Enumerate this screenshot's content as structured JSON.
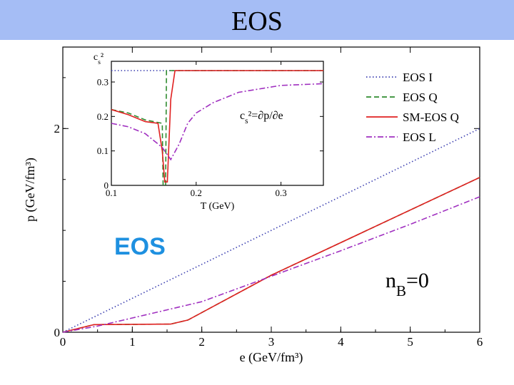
{
  "slide": {
    "title": "EOS",
    "overlay_label": "EOS",
    "title_bar_color": "#a5bdf5",
    "overlay_label_color": "#1e90e0"
  },
  "chart_data": [
    {
      "type": "line",
      "xlabel": "e (GeV/fm³)",
      "ylabel": "p (GeV/fm³)",
      "xlim": [
        0,
        6
      ],
      "ylim": [
        0,
        2.8
      ],
      "x_ticks": [
        0,
        1,
        2,
        3,
        4,
        5,
        6
      ],
      "y_ticks": [
        0,
        2
      ],
      "x_tick_labels": [
        "0",
        "1",
        "2",
        "3",
        "4",
        "5",
        "6"
      ],
      "y_tick_labels": [
        "0",
        "2"
      ],
      "grid": false,
      "legend_position": "top-right",
      "annotation": "n_B=0",
      "series": [
        {
          "name": "EOS I",
          "color": "#3b3fb0",
          "dash": "dotted",
          "points": [
            [
              0,
              0
            ],
            [
              6,
              2.0
            ]
          ]
        },
        {
          "name": "EOS Q",
          "color": "#2e8b2e",
          "dash": "dashed",
          "points": [
            [
              0,
              0
            ],
            [
              0.45,
              0.075
            ],
            [
              1.55,
              0.08
            ],
            [
              1.8,
              0.12
            ],
            [
              3,
              0.56
            ],
            [
              6,
              1.52
            ]
          ]
        },
        {
          "name": "SM-EOS Q",
          "color": "#e02020",
          "dash": "solid",
          "points": [
            [
              0,
              0
            ],
            [
              0.45,
              0.075
            ],
            [
              1.55,
              0.08
            ],
            [
              1.8,
              0.12
            ],
            [
              3,
              0.56
            ],
            [
              6,
              1.52
            ]
          ]
        },
        {
          "name": "EOS L",
          "color": "#a030c0",
          "dash": "dashdot",
          "points": [
            [
              0,
              0
            ],
            [
              0.5,
              0.06
            ],
            [
              1,
              0.14
            ],
            [
              1.5,
              0.22
            ],
            [
              2,
              0.3
            ],
            [
              3,
              0.55
            ],
            [
              4,
              0.8
            ],
            [
              5,
              1.06
            ],
            [
              6,
              1.33
            ]
          ]
        }
      ]
    },
    {
      "type": "line",
      "xlabel": "T (GeV)",
      "ylabel": "c_s²",
      "xlim": [
        0.1,
        0.35
      ],
      "ylim": [
        0,
        0.36
      ],
      "x_ticks": [
        0.1,
        0.2,
        0.3
      ],
      "y_ticks": [
        0,
        0.1,
        0.2,
        0.3
      ],
      "x_tick_labels": [
        "0.1",
        "0.2",
        "0.3"
      ],
      "y_tick_labels": [
        "0",
        "0.1",
        "0.2",
        "0.3"
      ],
      "grid": false,
      "annotation": "c_s²=∂p/∂e",
      "series": [
        {
          "name": "EOS I",
          "color": "#3b3fb0",
          "dash": "dotted",
          "points": [
            [
              0.1,
              0.333
            ],
            [
              0.35,
              0.333
            ]
          ]
        },
        {
          "name": "EOS Q",
          "color": "#2e8b2e",
          "dash": "dashed",
          "points": [
            [
              0.1,
              0.22
            ],
            [
              0.12,
              0.21
            ],
            [
              0.14,
              0.19
            ],
            [
              0.16,
              0.18
            ],
            [
              0.161,
              0.0
            ],
            [
              0.164,
              0.0
            ],
            [
              0.165,
              0.333
            ],
            [
              0.35,
              0.333
            ]
          ]
        },
        {
          "name": "SM-EOS Q",
          "color": "#e02020",
          "dash": "solid",
          "points": [
            [
              0.1,
              0.22
            ],
            [
              0.12,
              0.205
            ],
            [
              0.14,
              0.185
            ],
            [
              0.155,
              0.18
            ],
            [
              0.16,
              0.1
            ],
            [
              0.163,
              0.01
            ],
            [
              0.166,
              0.01
            ],
            [
              0.17,
              0.25
            ],
            [
              0.175,
              0.333
            ],
            [
              0.35,
              0.333
            ]
          ]
        },
        {
          "name": "EOS L",
          "color": "#a030c0",
          "dash": "dashdot",
          "points": [
            [
              0.1,
              0.18
            ],
            [
              0.12,
              0.17
            ],
            [
              0.14,
              0.15
            ],
            [
              0.16,
              0.11
            ],
            [
              0.17,
              0.075
            ],
            [
              0.18,
              0.12
            ],
            [
              0.19,
              0.18
            ],
            [
              0.2,
              0.21
            ],
            [
              0.22,
              0.24
            ],
            [
              0.25,
              0.27
            ],
            [
              0.3,
              0.29
            ],
            [
              0.35,
              0.295
            ]
          ]
        }
      ]
    }
  ]
}
